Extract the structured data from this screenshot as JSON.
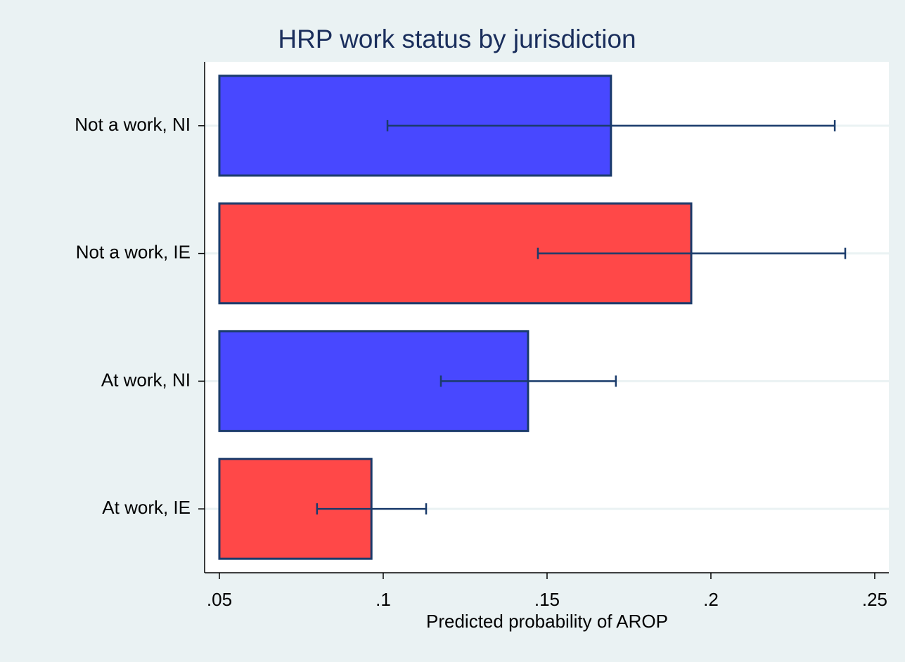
{
  "chart_data": {
    "type": "hbar_errorbar",
    "title": "HRP work status by jurisdiction",
    "x_label": "Predicted probability of AROP",
    "categories": [
      "Not a work, NI",
      "Not a work, IE",
      "At work, NI",
      "At work, IE"
    ],
    "values": [
      0.1695,
      0.194,
      0.1442,
      0.0964
    ],
    "ci_low": [
      0.1013,
      0.1472,
      0.1176,
      0.0798
    ],
    "ci_high": [
      0.2378,
      0.241,
      0.171,
      0.1131
    ],
    "colors": [
      "#4848ff",
      "#ff4848",
      "#4848ff",
      "#ff4848"
    ],
    "xlim": [
      0.0455,
      0.2543
    ],
    "xticks": [
      {
        "value": 0.05,
        "label": ".05"
      },
      {
        "value": 0.1,
        "label": ".1"
      },
      {
        "value": 0.15,
        "label": ".15"
      },
      {
        "value": 0.2,
        "label": ".2"
      },
      {
        "value": 0.25,
        "label": ".25"
      }
    ],
    "grid": true
  }
}
